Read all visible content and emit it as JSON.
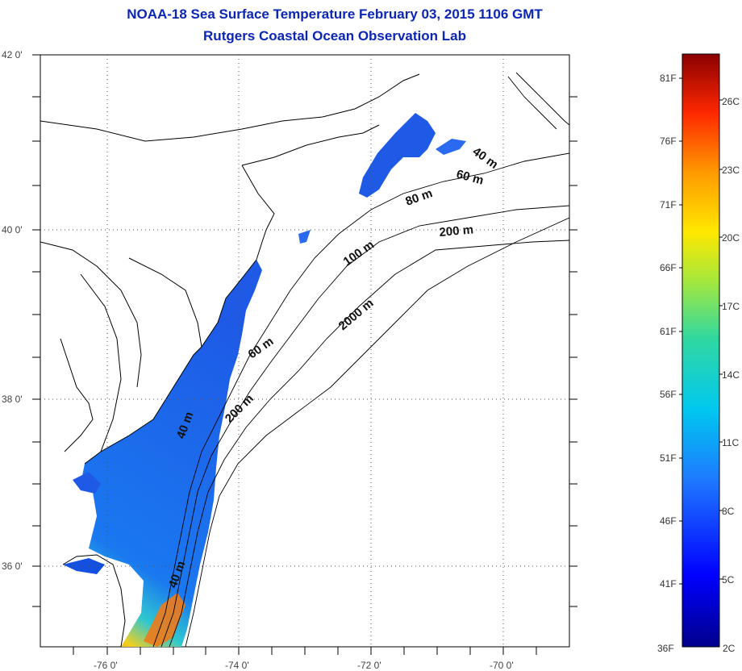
{
  "title_line1": "NOAA-18 Sea Surface Temperature February 03, 2015 1106 GMT",
  "title_line2": "Rutgers Coastal Ocean Observation Lab",
  "map": {
    "lat_labels": [
      "42 0'",
      "40 0'",
      "38 0'",
      "36 0'"
    ],
    "lon_labels": [
      "-76 0'",
      "-74 0'",
      "-72 0'",
      "-70 0'"
    ],
    "contour_labels": [
      "40 m",
      "60 m",
      "80 m",
      "200 m",
      "100 m",
      "2000 m",
      "60 m",
      "200 m",
      "40 m",
      "40 m"
    ]
  },
  "colorbar": {
    "fahrenheit": [
      "81F",
      "76F",
      "71F",
      "66F",
      "61F",
      "56F",
      "51F",
      "46F",
      "41F",
      "36F"
    ],
    "celsius": [
      "26C",
      "23C",
      "20C",
      "17C",
      "14C",
      "11C",
      "8C",
      "5C",
      "2C"
    ]
  },
  "colors": {
    "title": "#0b26b5",
    "cold": "#00008b",
    "warm": "#8b0000"
  }
}
